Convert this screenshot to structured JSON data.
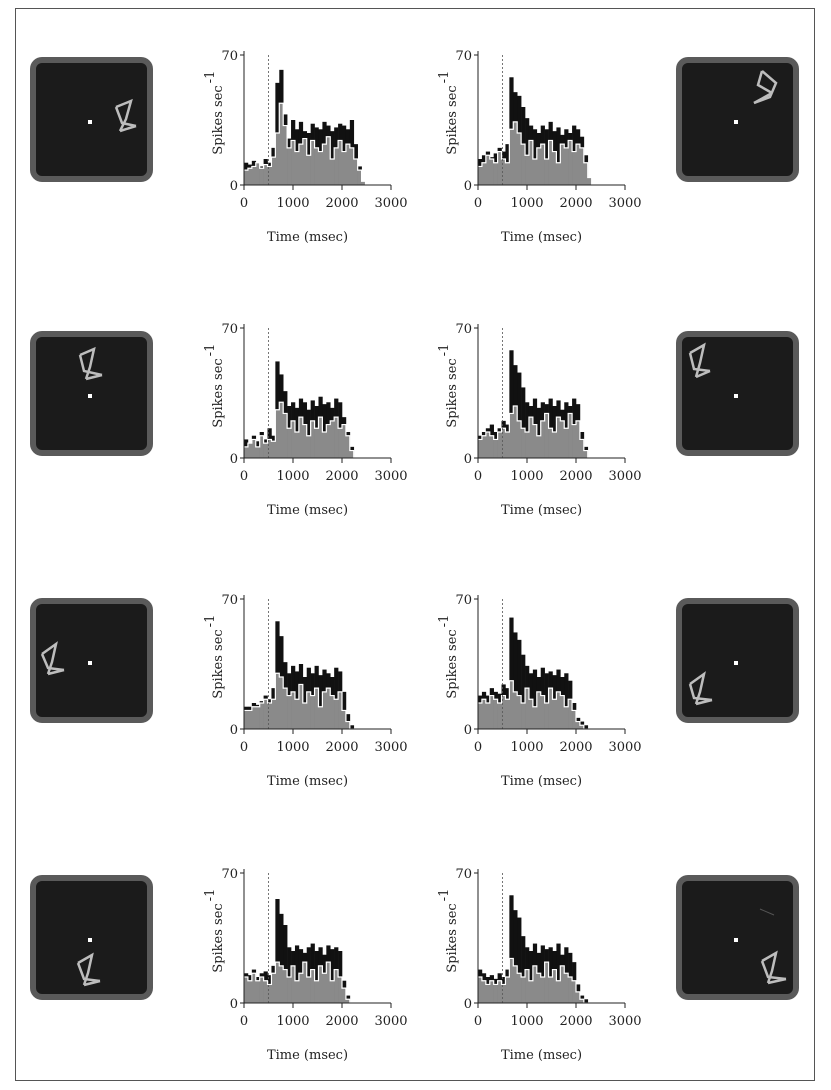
{
  "chart_data": [
    {
      "panel": "r1-left",
      "type": "bar",
      "title": "",
      "xlabel": "Time (msec)",
      "ylabel": "Spikes sec",
      "ylabel_sup": "-1",
      "xlim": [
        0,
        3000
      ],
      "ylim": [
        0,
        70
      ],
      "xticks": [
        0,
        1000,
        2000,
        3000
      ],
      "yticks": [
        0,
        70
      ],
      "stim_onset": 500,
      "bin_ms": 80,
      "series": [
        {
          "name": "",
          "color": "#111111",
          "values": [
            12,
            11,
            13,
            12,
            10,
            14,
            12,
            20,
            55,
            62,
            38,
            25,
            35,
            30,
            34,
            29,
            28,
            33,
            31,
            30,
            34,
            32,
            29,
            31,
            33,
            32,
            30,
            35,
            22,
            10,
            2,
            0
          ]
        },
        {
          "name": "",
          "color": "#8a8a8a",
          "values": [
            8,
            9,
            10,
            12,
            9,
            11,
            10,
            15,
            28,
            44,
            32,
            20,
            24,
            18,
            22,
            25,
            16,
            24,
            20,
            18,
            22,
            26,
            14,
            20,
            24,
            18,
            22,
            20,
            14,
            8,
            2,
            0
          ]
        }
      ]
    },
    {
      "panel": "r1-right",
      "type": "bar",
      "title": "",
      "xlabel": "Time (msec)",
      "ylabel": "Spikes sec",
      "ylabel_sup": "-1",
      "xlim": [
        0,
        3000
      ],
      "ylim": [
        0,
        70
      ],
      "xticks": [
        0,
        1000,
        2000,
        3000
      ],
      "yticks": [
        0,
        70
      ],
      "stim_onset": 500,
      "bin_ms": 80,
      "series": [
        {
          "name": "",
          "color": "#111111",
          "values": [
            14,
            16,
            18,
            15,
            17,
            20,
            18,
            22,
            58,
            50,
            48,
            42,
            36,
            32,
            30,
            28,
            32,
            30,
            34,
            29,
            31,
            27,
            30,
            28,
            32,
            30,
            26,
            16,
            4,
            0,
            0,
            0
          ]
        },
        {
          "name": "",
          "color": "#8a8a8a",
          "values": [
            10,
            12,
            16,
            14,
            12,
            18,
            14,
            12,
            30,
            34,
            28,
            22,
            16,
            24,
            14,
            20,
            22,
            14,
            24,
            18,
            12,
            22,
            20,
            24,
            18,
            22,
            20,
            12,
            4,
            0,
            0,
            0
          ]
        }
      ]
    },
    {
      "panel": "r2-left",
      "type": "bar",
      "title": "",
      "xlabel": "Time (msec)",
      "ylabel": "Spikes sec",
      "ylabel_sup": "-1",
      "xlim": [
        0,
        3000
      ],
      "ylim": [
        0,
        70
      ],
      "xticks": [
        0,
        1000,
        2000,
        3000
      ],
      "yticks": [
        0,
        70
      ],
      "stim_onset": 500,
      "bin_ms": 80,
      "series": [
        {
          "name": "",
          "color": "#111111",
          "values": [
            10,
            8,
            12,
            9,
            14,
            10,
            16,
            12,
            52,
            45,
            36,
            28,
            30,
            27,
            32,
            30,
            26,
            31,
            28,
            33,
            29,
            30,
            27,
            32,
            30,
            22,
            14,
            6,
            0,
            0,
            0,
            0
          ]
        },
        {
          "name": "",
          "color": "#8a8a8a",
          "values": [
            6,
            8,
            10,
            6,
            12,
            8,
            10,
            9,
            26,
            30,
            24,
            16,
            20,
            14,
            22,
            18,
            12,
            20,
            16,
            22,
            14,
            18,
            20,
            22,
            16,
            18,
            12,
            4,
            0,
            0,
            0,
            0
          ]
        }
      ]
    },
    {
      "panel": "r2-right",
      "type": "bar",
      "title": "",
      "xlabel": "Time (msec)",
      "ylabel": "Spikes sec",
      "ylabel_sup": "-1",
      "xlim": [
        0,
        3000
      ],
      "ylim": [
        0,
        70
      ],
      "xticks": [
        0,
        1000,
        2000,
        3000
      ],
      "yticks": [
        0,
        70
      ],
      "stim_onset": 500,
      "bin_ms": 80,
      "series": [
        {
          "name": "",
          "color": "#111111",
          "values": [
            12,
            14,
            16,
            18,
            14,
            16,
            20,
            18,
            58,
            50,
            46,
            38,
            30,
            28,
            32,
            27,
            30,
            29,
            32,
            28,
            31,
            26,
            30,
            28,
            32,
            29,
            14,
            6,
            0,
            0,
            0,
            0
          ]
        },
        {
          "name": "",
          "color": "#8a8a8a",
          "values": [
            10,
            12,
            14,
            12,
            10,
            14,
            16,
            14,
            24,
            28,
            20,
            16,
            14,
            22,
            18,
            12,
            20,
            24,
            16,
            14,
            22,
            20,
            16,
            24,
            18,
            20,
            10,
            4,
            0,
            0,
            0,
            0
          ]
        }
      ]
    },
    {
      "panel": "r3-left",
      "type": "bar",
      "title": "",
      "xlabel": "Time (msec)",
      "ylabel": "Spikes sec",
      "ylabel_sup": "-1",
      "xlim": [
        0,
        3000
      ],
      "ylim": [
        0,
        70
      ],
      "xticks": [
        0,
        1000,
        2000,
        3000
      ],
      "yticks": [
        0,
        70
      ],
      "stim_onset": 500,
      "bin_ms": 80,
      "series": [
        {
          "name": "",
          "color": "#111111",
          "values": [
            12,
            12,
            14,
            13,
            15,
            18,
            16,
            22,
            58,
            50,
            36,
            30,
            34,
            31,
            35,
            28,
            33,
            30,
            34,
            29,
            32,
            30,
            28,
            33,
            31,
            20,
            8,
            2,
            0,
            0,
            0,
            0
          ]
        },
        {
          "name": "",
          "color": "#8a8a8a",
          "values": [
            10,
            10,
            12,
            12,
            14,
            16,
            14,
            16,
            30,
            28,
            22,
            18,
            20,
            16,
            24,
            14,
            20,
            18,
            22,
            12,
            20,
            22,
            18,
            16,
            20,
            10,
            4,
            0,
            0,
            0,
            0,
            0
          ]
        }
      ]
    },
    {
      "panel": "r3-right",
      "type": "bar",
      "title": "",
      "xlabel": "Time (msec)",
      "ylabel": "Spikes sec",
      "ylabel_sup": "-1",
      "xlim": [
        0,
        3000
      ],
      "ylim": [
        0,
        70
      ],
      "xticks": [
        0,
        1000,
        2000,
        3000
      ],
      "yticks": [
        0,
        70
      ],
      "stim_onset": 500,
      "bin_ms": 80,
      "series": [
        {
          "name": "",
          "color": "#111111",
          "values": [
            18,
            20,
            18,
            22,
            20,
            19,
            24,
            22,
            60,
            52,
            48,
            40,
            34,
            30,
            32,
            28,
            33,
            30,
            31,
            29,
            32,
            28,
            30,
            26,
            14,
            6,
            4,
            2,
            0,
            0,
            0,
            0
          ]
        },
        {
          "name": "",
          "color": "#8a8a8a",
          "values": [
            14,
            16,
            14,
            18,
            16,
            14,
            18,
            16,
            26,
            20,
            18,
            14,
            22,
            16,
            12,
            20,
            18,
            14,
            22,
            16,
            20,
            18,
            12,
            16,
            10,
            4,
            2,
            0,
            0,
            0,
            0,
            0
          ]
        }
      ]
    },
    {
      "panel": "r4-left",
      "type": "bar",
      "title": "",
      "xlabel": "Time (msec)",
      "ylabel": "Spikes sec",
      "ylabel_sup": "-1",
      "xlim": [
        0,
        3000
      ],
      "ylim": [
        0,
        70
      ],
      "xticks": [
        0,
        1000,
        2000,
        3000
      ],
      "yticks": [
        0,
        70
      ],
      "stim_onset": 500,
      "bin_ms": 80,
      "series": [
        {
          "name": "",
          "color": "#111111",
          "values": [
            16,
            15,
            18,
            14,
            16,
            17,
            15,
            20,
            56,
            48,
            42,
            30,
            28,
            31,
            29,
            27,
            30,
            32,
            28,
            30,
            26,
            31,
            29,
            30,
            28,
            12,
            4,
            0,
            0,
            0,
            0,
            0
          ]
        },
        {
          "name": "",
          "color": "#8a8a8a",
          "values": [
            14,
            12,
            16,
            12,
            14,
            12,
            10,
            16,
            22,
            20,
            18,
            14,
            20,
            12,
            16,
            22,
            14,
            18,
            12,
            20,
            16,
            22,
            12,
            18,
            14,
            8,
            2,
            0,
            0,
            0,
            0,
            0
          ]
        }
      ]
    },
    {
      "panel": "r4-right",
      "type": "bar",
      "title": "",
      "xlabel": "Time (msec)",
      "ylabel": "Spikes sec",
      "ylabel_sup": "-1",
      "xlim": [
        0,
        3000
      ],
      "ylim": [
        0,
        70
      ],
      "xticks": [
        0,
        1000,
        2000,
        3000
      ],
      "yticks": [
        0,
        70
      ],
      "stim_onset": 500,
      "bin_ms": 80,
      "series": [
        {
          "name": "",
          "color": "#111111",
          "values": [
            18,
            16,
            14,
            15,
            13,
            16,
            14,
            18,
            58,
            50,
            46,
            36,
            30,
            28,
            32,
            27,
            31,
            29,
            30,
            28,
            32,
            26,
            30,
            27,
            22,
            10,
            4,
            2,
            0,
            0,
            0,
            0
          ]
        },
        {
          "name": "",
          "color": "#8a8a8a",
          "values": [
            14,
            12,
            10,
            12,
            10,
            12,
            10,
            14,
            24,
            20,
            16,
            14,
            18,
            12,
            20,
            16,
            14,
            22,
            14,
            18,
            12,
            20,
            16,
            14,
            12,
            6,
            2,
            0,
            0,
            0,
            0,
            0
          ]
        }
      ]
    }
  ],
  "stimuli": [
    {
      "panel": "r1-left",
      "shape_position": "right of fixation point"
    },
    {
      "panel": "r1-right",
      "shape_position": "upper right"
    },
    {
      "panel": "r2-left",
      "shape_position": "above fixation point"
    },
    {
      "panel": "r2-right",
      "shape_position": "upper left"
    },
    {
      "panel": "r3-left",
      "shape_position": "left of fixation point"
    },
    {
      "panel": "r3-right",
      "shape_position": "lower left"
    },
    {
      "panel": "r4-left",
      "shape_position": "below fixation point"
    },
    {
      "panel": "r4-right",
      "shape_position": "lower right"
    }
  ]
}
